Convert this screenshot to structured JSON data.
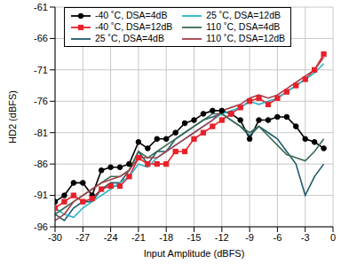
{
  "chart_data": {
    "type": "line",
    "x_label": "Input Amplitude (dBFS)",
    "y_label": "HD2 (dBFS)",
    "x": [
      -30,
      -29,
      -28,
      -27,
      -26,
      -25,
      -24,
      -23,
      -22,
      -21,
      -20,
      -19,
      -18,
      -17,
      -16,
      -15,
      -14,
      -13,
      -12,
      -11,
      -10,
      -9,
      -8,
      -7,
      -6,
      -5,
      -4,
      -3,
      -2,
      -1
    ],
    "xlim": [
      -30,
      0
    ],
    "xticks": [
      -30,
      -27,
      -24,
      -21,
      -18,
      -15,
      -12,
      -9,
      -6,
      -3,
      0
    ],
    "ylim": [
      -96,
      -61
    ],
    "yticks": [
      -96,
      -91,
      -86,
      -81,
      -76,
      -71,
      -66,
      -61
    ],
    "grid": true,
    "legend": "upper left",
    "series": [
      {
        "name": "-40 ˚C, DSA=4dB",
        "color": "#000000",
        "marker": "circle",
        "line_style": "solid",
        "values": [
          -92,
          -91,
          -89,
          -89,
          -91,
          -87,
          -86.5,
          -86.5,
          -86,
          -82.5,
          -83.5,
          -82,
          -82,
          -81,
          -79.5,
          -79,
          -78,
          -77.5,
          -77.5,
          -78,
          -79,
          -82,
          -79,
          -79,
          -78.5,
          -78.5,
          -80,
          -82,
          -82.5,
          -83.5
        ]
      },
      {
        "name": "-40 ˚C, DSA=12dB",
        "color": "#e8202a",
        "marker": "square",
        "line_style": "solid",
        "values": [
          -93,
          -92,
          -91,
          -92,
          -91.5,
          -90,
          -89.5,
          -89.5,
          -88,
          -85,
          -86,
          -86,
          -86,
          -84,
          -84,
          -82,
          -81,
          -80,
          -79,
          -78,
          -77,
          -76,
          -75.5,
          -76.5,
          -75.5,
          -74.5,
          -73.5,
          -72.5,
          -71,
          -68.5
        ]
      },
      {
        "name": "25 ˚C, DSA=4dB",
        "color": "#1d5a6b",
        "line_style": "solid",
        "values": [
          -94,
          -95,
          -93,
          -92,
          -92,
          -90,
          -89,
          -89,
          -87,
          -84,
          -86,
          -84,
          -84,
          -82,
          -81,
          -80,
          -79,
          -78.5,
          -78,
          -79,
          -80,
          -81.5,
          -80,
          -81,
          -82,
          -84,
          -86,
          -91,
          -88,
          -86
        ]
      },
      {
        "name": "25 ˚C, DSA=12dB",
        "color": "#28b4c8",
        "line_style": "solid",
        "values": [
          -93,
          -94,
          -94.5,
          -93,
          -92,
          -91,
          -90,
          -89,
          -88,
          -86,
          -86.5,
          -85,
          -84,
          -83,
          -82,
          -81,
          -80,
          -79,
          -78,
          -77.5,
          -77,
          -76,
          -76.5,
          -76,
          -75.5,
          -74.5,
          -73.5,
          -72.5,
          -71.5,
          -70
        ]
      },
      {
        "name": "110 ˚C, DSA=4dB",
        "color": "#3a6b50",
        "line_style": "solid",
        "values": [
          -94,
          -93,
          -92,
          -91,
          -90,
          -89,
          -88,
          -88,
          -87,
          -84,
          -85,
          -84,
          -83,
          -82,
          -81,
          -80,
          -79,
          -78,
          -78,
          -79,
          -80,
          -81,
          -80,
          -81.5,
          -83,
          -84.5,
          -85,
          -85.5,
          -84,
          -82
        ]
      },
      {
        "name": "110 ˚C, DSA=12dB",
        "color": "#a3404c",
        "line_style": "solid",
        "values": [
          -95,
          -94,
          -92,
          -91,
          -90,
          -89,
          -88.5,
          -88,
          -87,
          -85,
          -85,
          -85,
          -84,
          -83,
          -82,
          -81,
          -80,
          -79,
          -77.5,
          -77,
          -76.5,
          -75.5,
          -75,
          -75.5,
          -75,
          -74,
          -73,
          -72,
          -71,
          -69
        ]
      }
    ]
  }
}
